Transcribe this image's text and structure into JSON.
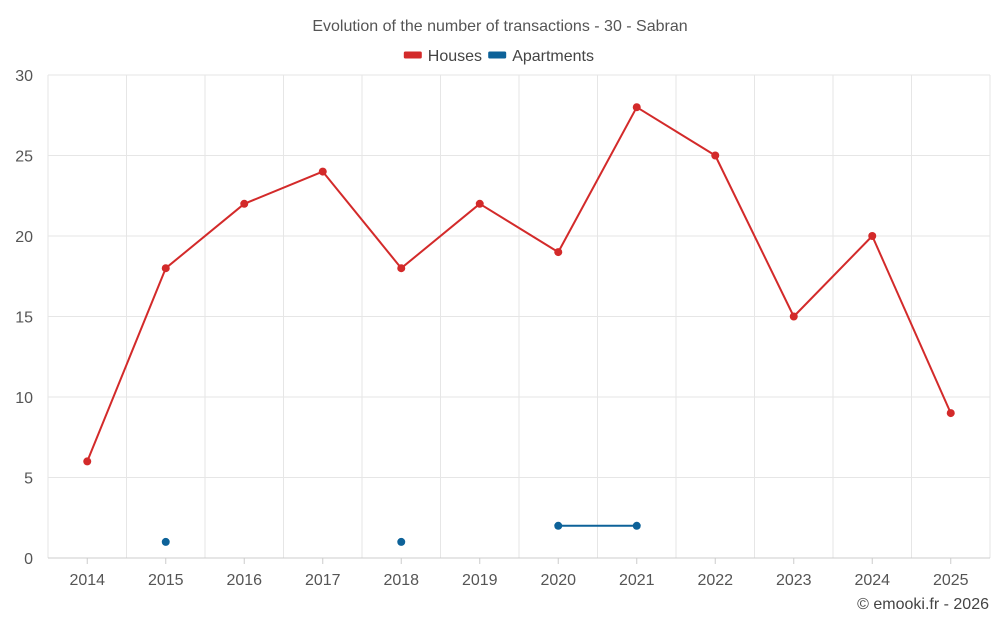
{
  "chart_data": {
    "type": "line",
    "title": "Evolution of the number of transactions - 30 - Sabran",
    "categories": [
      "2014",
      "2015",
      "2016",
      "2017",
      "2018",
      "2019",
      "2020",
      "2021",
      "2022",
      "2023",
      "2024",
      "2025"
    ],
    "series": [
      {
        "name": "Houses",
        "color": "#d32a2a",
        "values": [
          6,
          18,
          22,
          24,
          18,
          22,
          19,
          28,
          25,
          15,
          20,
          9
        ]
      },
      {
        "name": "Apartments",
        "color": "#0d6299",
        "values": [
          null,
          1,
          null,
          null,
          1,
          null,
          2,
          2,
          null,
          null,
          null,
          null
        ]
      }
    ],
    "ylim": [
      0,
      30
    ],
    "yticks": [
      "0",
      "5",
      "10",
      "15",
      "20",
      "25",
      "30"
    ],
    "xlabel": "",
    "ylabel": "",
    "grid": true,
    "legend": "top-center"
  },
  "credit": "© emooki.fr - 2026"
}
